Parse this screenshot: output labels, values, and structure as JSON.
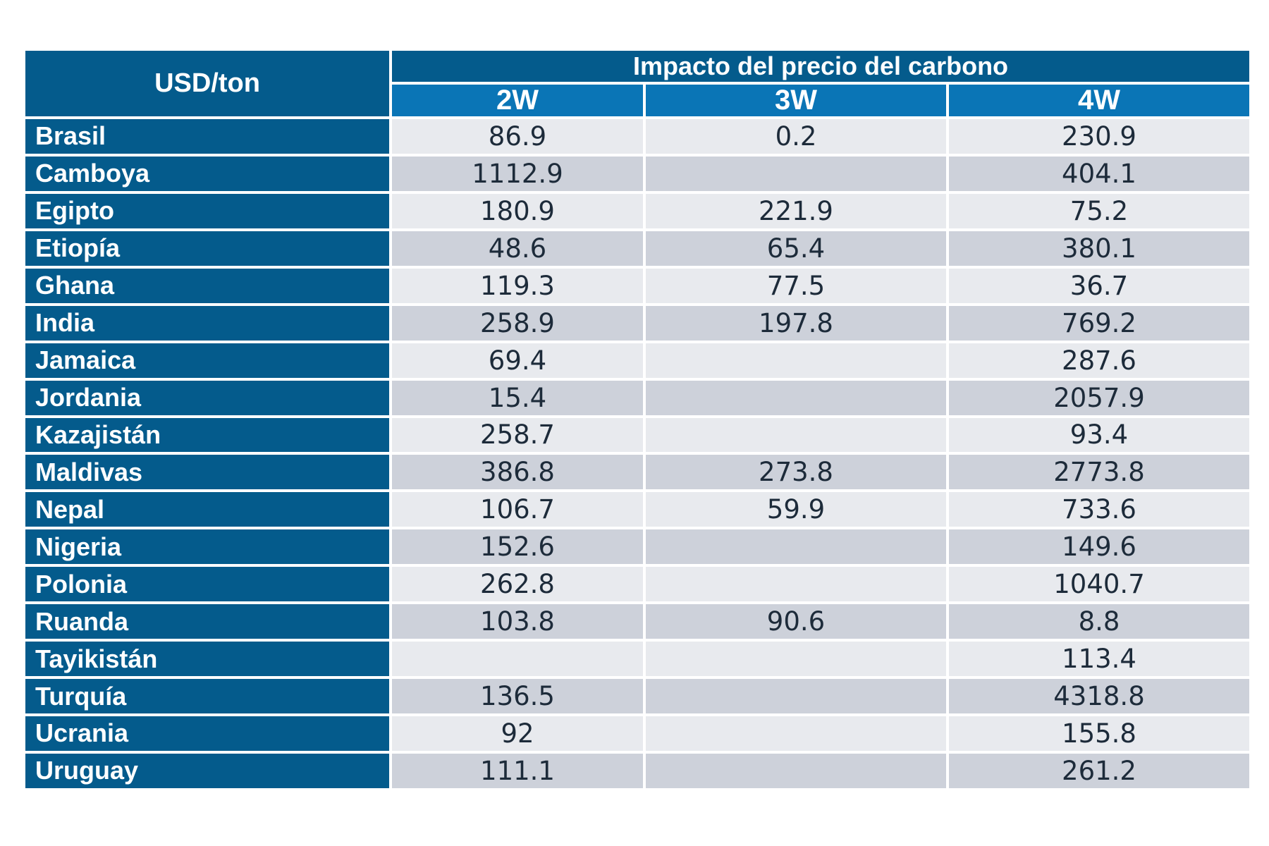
{
  "chart_data": {
    "type": "table",
    "corner_label": "USD/ton",
    "group_header": "Impacto del precio del carbono",
    "columns": [
      "2W",
      "3W",
      "4W"
    ],
    "rows": [
      {
        "label": "Brasil",
        "values": [
          "86.9",
          "0.2",
          "230.9"
        ]
      },
      {
        "label": "Camboya",
        "values": [
          "1112.9",
          "",
          "404.1"
        ]
      },
      {
        "label": "Egipto",
        "values": [
          "180.9",
          "221.9",
          "75.2"
        ]
      },
      {
        "label": "Etiopía",
        "values": [
          "48.6",
          "65.4",
          "380.1"
        ]
      },
      {
        "label": "Ghana",
        "values": [
          "119.3",
          "77.5",
          "36.7"
        ]
      },
      {
        "label": "India",
        "values": [
          "258.9",
          "197.8",
          "769.2"
        ]
      },
      {
        "label": "Jamaica",
        "values": [
          "69.4",
          "",
          "287.6"
        ]
      },
      {
        "label": "Jordania",
        "values": [
          "15.4",
          "",
          "2057.9"
        ]
      },
      {
        "label": "Kazajistán",
        "values": [
          "258.7",
          "",
          "93.4"
        ]
      },
      {
        "label": "Maldivas",
        "values": [
          "386.8",
          "273.8",
          "2773.8"
        ]
      },
      {
        "label": "Nepal",
        "values": [
          "106.7",
          "59.9",
          "733.6"
        ]
      },
      {
        "label": "Nigeria",
        "values": [
          "152.6",
          "",
          "149.6"
        ]
      },
      {
        "label": "Polonia",
        "values": [
          "262.8",
          "",
          "1040.7"
        ]
      },
      {
        "label": "Ruanda",
        "values": [
          "103.8",
          "90.6",
          "8.8"
        ]
      },
      {
        "label": "Tayikistán",
        "values": [
          "",
          "",
          "113.4"
        ]
      },
      {
        "label": "Turquía",
        "values": [
          "136.5",
          "",
          "4318.8"
        ]
      },
      {
        "label": "Ucrania",
        "values": [
          "92",
          "",
          "155.8"
        ]
      },
      {
        "label": "Uruguay",
        "values": [
          "111.1",
          "",
          "261.2"
        ]
      }
    ]
  },
  "colors": {
    "header_dark": "#045b8c",
    "header_light": "#0a75b6",
    "row_light": "#e8eaee",
    "row_dark": "#cdd1da",
    "text": "#1d2b3a"
  }
}
